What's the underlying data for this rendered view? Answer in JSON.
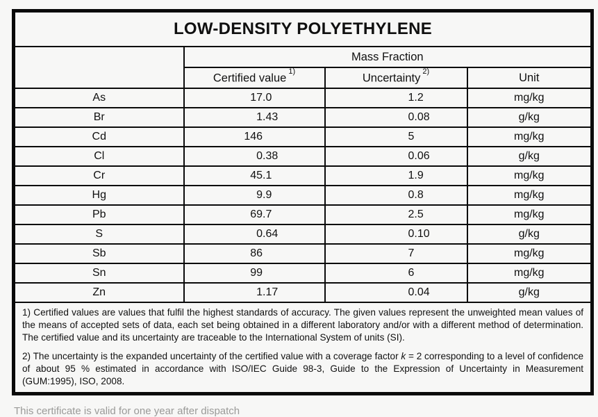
{
  "title": "LOW-DENSITY POLYETHYLENE",
  "table": {
    "group_header": "Mass Fraction",
    "columns": {
      "certified": {
        "label": "Certified value",
        "sup": "1)"
      },
      "uncertainty": {
        "label": "Uncertainty",
        "sup": "2)"
      },
      "unit": "Unit"
    },
    "rows": [
      {
        "element": "As",
        "certified": "17.0",
        "uncertainty": "1.2",
        "unit": "mg/kg"
      },
      {
        "element": "Br",
        "certified": "1.43",
        "uncertainty": "0.08",
        "unit": "g/kg"
      },
      {
        "element": "Cd",
        "certified": "146",
        "uncertainty": "5",
        "unit": "mg/kg"
      },
      {
        "element": "Cl",
        "certified": "0.38",
        "uncertainty": "0.06",
        "unit": "g/kg"
      },
      {
        "element": "Cr",
        "certified": "45.1",
        "uncertainty": "1.9",
        "unit": "mg/kg"
      },
      {
        "element": "Hg",
        "certified": "9.9",
        "uncertainty": "0.8",
        "unit": "mg/kg"
      },
      {
        "element": "Pb",
        "certified": "69.7",
        "uncertainty": "2.5",
        "unit": "mg/kg"
      },
      {
        "element": "S",
        "certified": "0.64",
        "uncertainty": "0.10",
        "unit": "g/kg"
      },
      {
        "element": "Sb",
        "certified": "86",
        "uncertainty": "7",
        "unit": "mg/kg"
      },
      {
        "element": "Sn",
        "certified": "99",
        "uncertainty": "6",
        "unit": "mg/kg"
      },
      {
        "element": "Zn",
        "certified": "1.17",
        "uncertainty": "0.04",
        "unit": "g/kg"
      }
    ]
  },
  "footnotes": {
    "note1": "1) Certified values are values that fulfil the highest standards of accuracy. The given values represent the unweighted mean values of the means of accepted sets of data, each set being obtained in a different laboratory and/or with a different method of determination. The certified value and its uncertainty are traceable to the International System of units (SI).",
    "note2_prefix": "2) The uncertainty is the expanded uncertainty of the certified value with a coverage factor ",
    "note2_k": "k",
    "note2_suffix": " = 2 corresponding to a level of confidence of about 95 % estimated in accordance with ISO/IEC Guide 98-3, Guide to the Expression of Uncertainty in Measurement (GUM:1995), ISO, 2008."
  },
  "bottom_note": "This certificate is valid for one year after dispatch"
}
